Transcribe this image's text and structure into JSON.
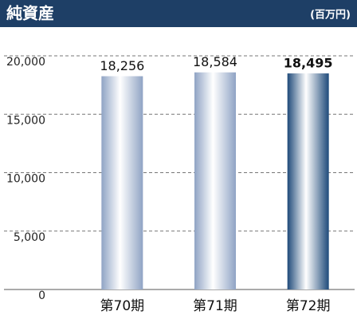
{
  "chart_data": {
    "type": "bar",
    "title": "純資産",
    "unit": "(百万円)",
    "categories": [
      "第70期",
      "第71期",
      "第72期"
    ],
    "values": [
      18256,
      18584,
      18495
    ],
    "value_labels": [
      "18,256",
      "18,584",
      "18,495"
    ],
    "colors": [
      "#8fa3c4",
      "#8fa3c4",
      "#1f4a7a"
    ],
    "highlight": 2,
    "ylim": [
      0,
      20000
    ],
    "yticks": [
      0,
      {
        "value": 5000,
        "label": "5,000"
      },
      {
        "value": 10000,
        "label": "10,000"
      },
      {
        "value": 15000,
        "label": "15,000"
      },
      {
        "value": 20000,
        "label": "20,000"
      }
    ],
    "grid": true
  }
}
